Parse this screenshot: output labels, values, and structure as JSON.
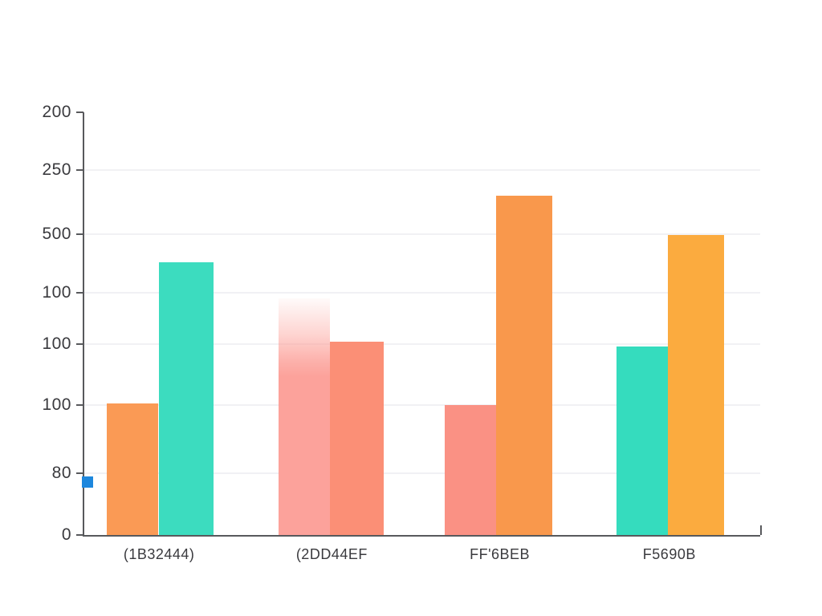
{
  "chart_data": {
    "type": "bar",
    "title": "",
    "categories": [
      "(1B32444)",
      "(2DD44EF",
      "FF'6BEB",
      "F5690B"
    ],
    "category_x_pct": [
      11.06,
      36.62,
      61.47,
      86.56
    ],
    "y_axis": {
      "tick_labels": [
        "200",
        "250",
        "500",
        "100",
        "100",
        "100",
        "80",
        "0"
      ],
      "tick_pos_pct": [
        0,
        13.66,
        28.84,
        42.69,
        54.84,
        69.26,
        85.39,
        100
      ]
    },
    "grid": true,
    "legend": false,
    "value_units": "percent_of_plot_height",
    "bars": [
      {
        "group": "(1B32444)",
        "color": "#FA9A55",
        "left_pct": 3.33,
        "width_pct": 7.61,
        "height_pct": 31.1,
        "fade_top": false
      },
      {
        "group": "(1B32444)",
        "color": "#3CDCBF",
        "left_pct": 11.06,
        "width_pct": 8.09,
        "height_pct": 64.5,
        "fade_top": false
      },
      {
        "group": "(2DD44EF",
        "color": "#FCA29B",
        "left_pct": 28.78,
        "width_pct": 7.61,
        "height_pct": 56.0,
        "fade_top": true
      },
      {
        "group": "(2DD44EF",
        "color": "#FB8F76",
        "left_pct": 36.39,
        "width_pct": 7.97,
        "height_pct": 45.7,
        "fade_top": false
      },
      {
        "group": "FF'6BEB",
        "color": "#FA9184",
        "left_pct": 53.27,
        "width_pct": 7.61,
        "height_pct": 30.7,
        "fade_top": false
      },
      {
        "group": "FF'6BEB",
        "color": "#F9984C",
        "left_pct": 60.88,
        "width_pct": 8.32,
        "height_pct": 80.3,
        "fade_top": false
      },
      {
        "group": "F5690B",
        "color": "#35DCBE",
        "left_pct": 78.72,
        "width_pct": 7.61,
        "height_pct": 44.6,
        "fade_top": false
      },
      {
        "group": "F5690B",
        "color": "#FBAB3F",
        "left_pct": 86.33,
        "width_pct": 8.32,
        "height_pct": 71.0,
        "fade_top": false
      }
    ],
    "marker": {
      "shape": "square",
      "color": "#1D87DD",
      "y_pct": 87.5
    },
    "colors": {
      "axis": "#58595C",
      "grid": "#F1F1F4",
      "label": "#3A3A3E",
      "background": "#FFFFFF"
    }
  }
}
